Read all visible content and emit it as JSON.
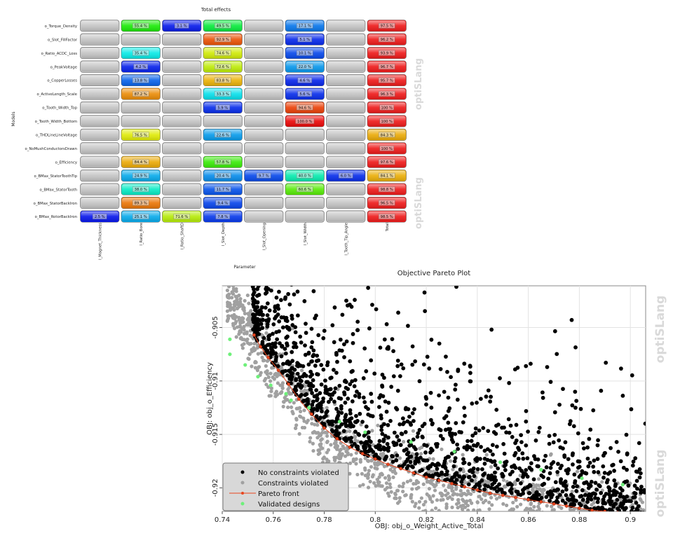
{
  "watermark": "optiSLang",
  "chart_data": [
    {
      "type": "heatmap",
      "title": "Total effects",
      "xlabel": "Parameter",
      "ylabel": "Models",
      "columns": [
        "l_Magnet_Thickness",
        "l_Ratio_Bore",
        "l_Ratio_ShaftD",
        "l_Slot_Depth",
        "l_Slot_Opening",
        "l_Slot_Width",
        "l_Tooth_Tip_Angle",
        "Total"
      ],
      "rows": [
        "o_Torque_Density",
        "o_Slot_FillFactor",
        "o_Ratio_ACDC_Loss",
        "o_PeakVoltage",
        "o_CopperLosses",
        "o_ActiveLength_Scale",
        "o_Tooth_Width_Top",
        "o_Tooth_Width_Bottom",
        "o_THDLineLineVoltage",
        "o_NoMushConductorsDrawn",
        "o_Efficiency",
        "o_BMax_StatorToothTip",
        "o_BMax_StatorTooth",
        "o_BMax_StatorBackIron",
        "o_BMax_RotorBackIron"
      ],
      "cells": [
        [
          null,
          "55.4 %",
          "3.1 %",
          "49.5 %",
          null,
          "17.1 %",
          null,
          "97.5 %"
        ],
        [
          null,
          null,
          null,
          "92.9 %",
          null,
          "5.1 %",
          null,
          "96.2 %"
        ],
        [
          null,
          "35.4 %",
          null,
          "74.6 %",
          null,
          "10.1 %",
          null,
          "93.9 %"
        ],
        [
          null,
          "4.2 %",
          null,
          "72.6 %",
          null,
          "22.0 %",
          null,
          "96.7 %"
        ],
        [
          null,
          "13.8 %",
          null,
          "83.8 %",
          null,
          "4.6 %",
          null,
          "95.7 %"
        ],
        [
          null,
          "87.2 %",
          null,
          "33.3 %",
          null,
          "5.6 %",
          null,
          "96.3 %"
        ],
        [
          null,
          null,
          null,
          "5.9 %",
          null,
          "94.6 %",
          null,
          "100 %"
        ],
        [
          null,
          null,
          null,
          null,
          null,
          "100.0 %",
          null,
          "100 %"
        ],
        [
          null,
          "76.5 %",
          null,
          "22.6 %",
          null,
          null,
          null,
          "84.3 %"
        ],
        [
          null,
          null,
          null,
          null,
          null,
          null,
          null,
          "100 %"
        ],
        [
          null,
          "84.4 %",
          null,
          "57.8 %",
          null,
          null,
          null,
          "97.6 %"
        ],
        [
          null,
          "24.9 %",
          null,
          "20.4 %",
          "9.7 %",
          "40.0 %",
          "6.0 %",
          "84.1 %"
        ],
        [
          null,
          "38.0 %",
          null,
          "11.7 %",
          null,
          "60.6 %",
          null,
          "98.8 %"
        ],
        [
          null,
          "89.3 %",
          null,
          "9.4 %",
          null,
          null,
          null,
          "96.5 %"
        ],
        [
          "2.5 %",
          "25.1 %",
          "71.6 %",
          "7.8 %",
          null,
          null,
          null,
          "98.5 %"
        ]
      ],
      "total_column_color": "#ee1c1c",
      "empty_cell_color": "#c4c4c4"
    },
    {
      "type": "scatter",
      "title": "Objective Pareto Plot",
      "xlabel": "OBJ: obj_o_Weight_Active_Total",
      "ylabel": "OBJ: obj_o_Efficiency",
      "xlim": [
        0.74,
        0.906
      ],
      "ylim": [
        -0.9222,
        -0.9011
      ],
      "xticks": [
        0.74,
        0.76,
        0.78,
        0.8,
        0.82,
        0.84,
        0.86,
        0.88,
        0.9
      ],
      "xtick_labels": [
        "0.74",
        "0.76",
        "0.78",
        "0.8",
        "0.82",
        "0.84",
        "0.86",
        "0.88",
        "0.9"
      ],
      "yticks": [
        -0.905,
        -0.91,
        -0.915,
        -0.92
      ],
      "ytick_labels": [
        "-0.905",
        "-0.91",
        "-0.915",
        "-0.92"
      ],
      "grid": true,
      "legend_position": "bottom-left",
      "series": [
        {
          "name": "No constraints violated",
          "color": "#000000",
          "style": "cloud",
          "count": 1400,
          "front": "pareto",
          "spread": 0.0105,
          "mean": 0.0047,
          "xrange": [
            0.752,
            0.906
          ]
        },
        {
          "name": "Constraints violated",
          "color": "#a0a0a0",
          "style": "cloud",
          "count": 1300,
          "front": "lower",
          "spread": 0.0045,
          "mean": 0.0008,
          "xrange": [
            0.742,
            0.906
          ]
        },
        {
          "name": "Pareto front",
          "color": "#e8461e",
          "style": "line",
          "x": [
            0.7525,
            0.755,
            0.758,
            0.762,
            0.766,
            0.77,
            0.775,
            0.78,
            0.785,
            0.79,
            0.795,
            0.8,
            0.805,
            0.81,
            0.815,
            0.82,
            0.825,
            0.83,
            0.835,
            0.84,
            0.845,
            0.85,
            0.855,
            0.86,
            0.865,
            0.87,
            0.875,
            0.88,
            0.885,
            0.89,
            0.895
          ],
          "y": [
            -0.9057,
            -0.9068,
            -0.9078,
            -0.909,
            -0.9103,
            -0.9117,
            -0.9131,
            -0.9144,
            -0.9154,
            -0.9162,
            -0.9168,
            -0.9173,
            -0.9178,
            -0.9182,
            -0.9186,
            -0.919,
            -0.9193,
            -0.9196,
            -0.9199,
            -0.9202,
            -0.9205,
            -0.9207,
            -0.9209,
            -0.9211,
            -0.9213,
            -0.9215,
            -0.9217,
            -0.9219,
            -0.9221,
            -0.9222,
            -0.9223
          ]
        },
        {
          "name": "Validated designs",
          "color": "#6ef07a",
          "style": "points",
          "x": [
            0.743,
            0.743,
            0.749,
            0.754,
            0.759,
            0.765,
            0.767,
            0.774,
            0.786,
            0.796,
            0.814,
            0.831,
            0.849,
            0.865,
            0.881,
            0.897
          ],
          "y": [
            -0.9061,
            -0.9075,
            -0.9085,
            -0.9096,
            -0.9104,
            -0.9112,
            -0.9118,
            -0.9125,
            -0.9138,
            -0.9148,
            -0.9157,
            -0.9166,
            -0.9176,
            -0.9183,
            -0.9191,
            -0.9197
          ]
        }
      ]
    }
  ]
}
